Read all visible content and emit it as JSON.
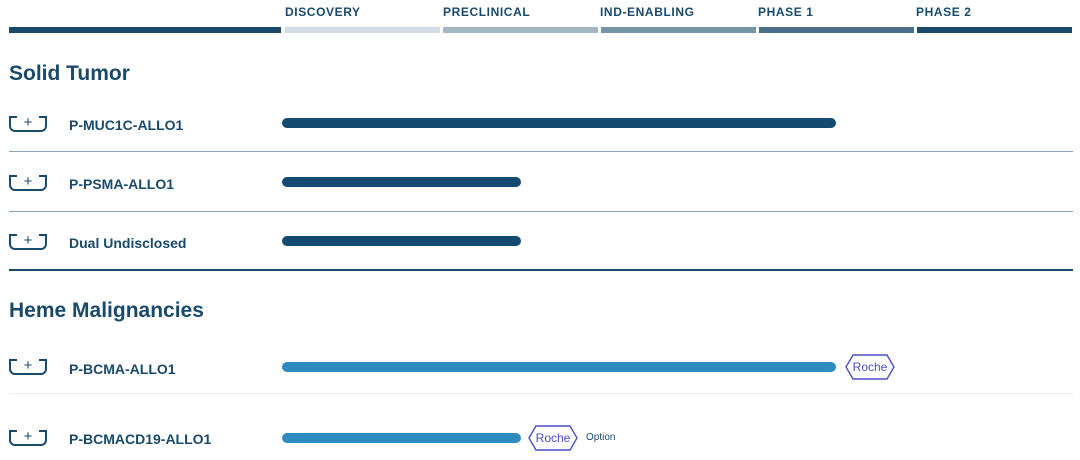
{
  "phases": [
    {
      "label": "DISCOVERY",
      "color": "#d0dbe3"
    },
    {
      "label": "PRECLINICAL",
      "color": "#a3b7c5"
    },
    {
      "label": "IND-ENABLING",
      "color": "#7693a7"
    },
    {
      "label": "PHASE 1",
      "color": "#4a7189"
    },
    {
      "label": "PHASE 2",
      "color": "#1a4a6b"
    }
  ],
  "sections": [
    {
      "title": "Solid Tumor",
      "programs": [
        {
          "name": "P-MUC1C-ALLO1",
          "progress": 0.7,
          "bar_color": "#154a70"
        },
        {
          "name": "P-PSMA-ALLO1",
          "progress": 0.3,
          "bar_color": "#154a70"
        },
        {
          "name": "Dual Undisclosed",
          "progress": 0.3,
          "bar_color": "#154a70"
        }
      ]
    },
    {
      "title": "Heme Malignancies",
      "programs": [
        {
          "name": "P-BCMA-ALLO1",
          "progress": 0.7,
          "bar_color": "#2e8bc0",
          "partner": "Roche"
        },
        {
          "name": "P-BCMACD19-ALLO1",
          "progress": 0.3,
          "bar_color": "#2e8bc0",
          "partner": "Roche",
          "note": "Option"
        }
      ]
    }
  ],
  "icons": {
    "expand": "plus-icon",
    "partner_badge": "hexagon-badge"
  },
  "colors": {
    "primary": "#1a4a6b",
    "partner": "#4a4fc7"
  }
}
